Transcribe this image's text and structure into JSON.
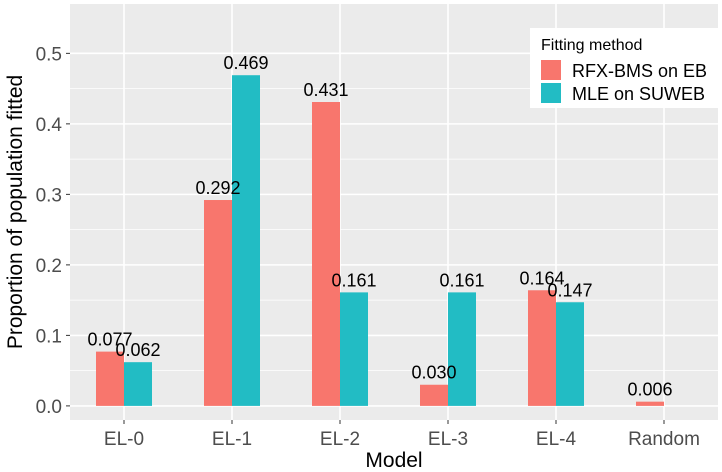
{
  "chart_data": {
    "type": "bar",
    "xlabel": "Model",
    "ylabel": "Proportion of population fitted",
    "categories": [
      "EL-0",
      "EL-1",
      "EL-2",
      "EL-3",
      "EL-4",
      "Random"
    ],
    "ylim": [
      -0.02,
      0.57
    ],
    "yticks": [
      0.0,
      0.1,
      0.2,
      0.3,
      0.4,
      0.5
    ],
    "ytick_labels": [
      "0.0",
      "0.1",
      "0.2",
      "0.3",
      "0.4",
      "0.5"
    ],
    "grid": true,
    "legend_title": "Fitting method",
    "legend_position": "top-right",
    "series": [
      {
        "name": "RFX-BMS on EB",
        "color": "#F8766D",
        "values": [
          0.077,
          0.292,
          0.431,
          0.03,
          0.164,
          0.006
        ],
        "labels": [
          "0.077",
          "0.292",
          "0.431",
          "0.030",
          "0.164",
          "0.006"
        ]
      },
      {
        "name": "MLE on SUWEB",
        "color": "#22BCC4",
        "values": [
          0.062,
          0.469,
          0.161,
          0.161,
          0.147,
          null
        ],
        "labels": [
          "0.062",
          "0.469",
          "0.161",
          "0.161",
          "0.147",
          null
        ]
      }
    ]
  }
}
